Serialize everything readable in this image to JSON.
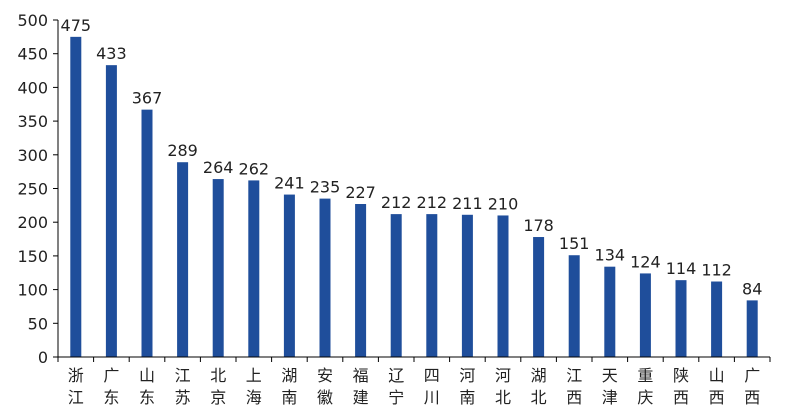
{
  "chart_data": {
    "type": "bar",
    "categories": [
      "浙江",
      "广东",
      "山东",
      "江苏",
      "北京",
      "上海",
      "湖南",
      "安徽",
      "福建",
      "辽宁",
      "四川",
      "河南",
      "河北",
      "湖北",
      "江西",
      "天津",
      "重庆",
      "陕西",
      "山西",
      "广西"
    ],
    "values": [
      475,
      433,
      367,
      289,
      264,
      262,
      241,
      235,
      227,
      212,
      212,
      211,
      210,
      178,
      151,
      134,
      124,
      114,
      112,
      84
    ],
    "yticks": [
      0,
      50,
      100,
      150,
      200,
      250,
      300,
      350,
      400,
      450,
      500
    ],
    "ylim": [
      0,
      500
    ],
    "title": "",
    "xlabel": "",
    "ylabel": "",
    "grid": false,
    "legend": "none",
    "bar_color": "#1f4e9b",
    "axis_color": "#000000"
  }
}
